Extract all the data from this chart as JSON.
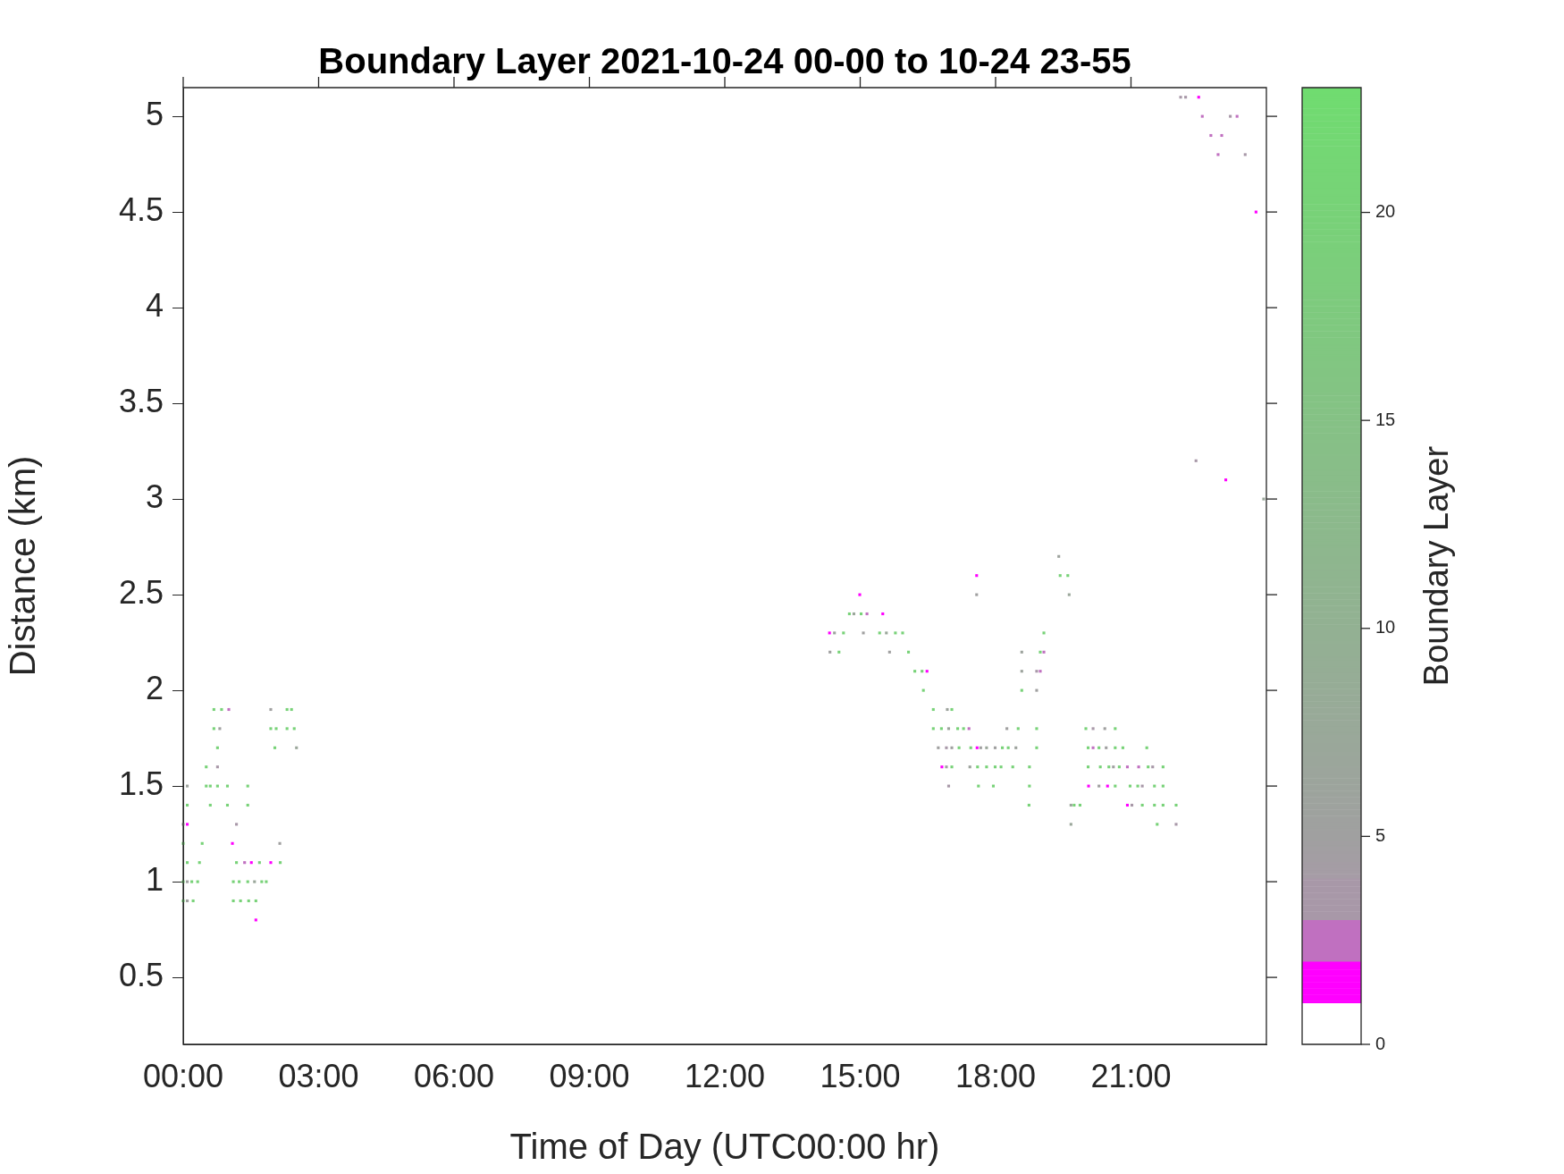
{
  "chart_data": {
    "type": "scatter",
    "title": "Boundary Layer 2021-10-24 00-00 to 10-24 23-55",
    "xlabel": "Time of Day (UTC00:00 hr)",
    "ylabel": "Distance (km)",
    "clabel": "Boundary Layer",
    "marker": "square",
    "grid": false,
    "legend": false,
    "xlim": [
      0,
      24
    ],
    "xticks": [
      {
        "value": 0,
        "label": "00:00"
      },
      {
        "value": 3,
        "label": "03:00"
      },
      {
        "value": 6,
        "label": "06:00"
      },
      {
        "value": 9,
        "label": "09:00"
      },
      {
        "value": 12,
        "label": "12:00"
      },
      {
        "value": 15,
        "label": "15:00"
      },
      {
        "value": 18,
        "label": "18:00"
      },
      {
        "value": 21,
        "label": "21:00"
      }
    ],
    "ylim": [
      0.15,
      5.15
    ],
    "yticks": [
      0.5,
      1,
      1.5,
      2,
      2.5,
      3,
      3.5,
      4,
      4.5,
      5
    ],
    "clim": [
      0,
      23
    ],
    "cticks": [
      0,
      5,
      10,
      15,
      20
    ],
    "x": [
      0.68,
      0.85,
      1.01,
      1.94,
      2.3,
      2.4,
      0.68,
      0.81,
      1.94,
      2.06,
      2.3,
      2.46,
      0.76,
      2.03,
      2.51,
      0.51,
      0.76,
      0.09,
      0.51,
      0.6,
      0.76,
      0.98,
      1.43,
      0.09,
      0.6,
      0.98,
      1.43,
      0.0,
      0.09,
      1.18,
      0.0,
      0.42,
      1.09,
      2.14,
      0.09,
      0.36,
      1.18,
      1.36,
      1.51,
      1.69,
      1.94,
      2.15,
      0.0,
      0.09,
      0.19,
      0.32,
      1.11,
      1.24,
      1.43,
      1.58,
      1.74,
      1.84,
      0.0,
      0.09,
      0.22,
      1.11,
      1.27,
      1.45,
      1.61,
      1.61,
      17.58,
      14.99,
      17.58,
      14.76,
      14.86,
      15.02,
      15.15,
      15.5,
      14.32,
      14.43,
      14.63,
      15.07,
      15.43,
      15.58,
      15.78,
      15.94,
      14.33,
      14.53,
      15.65,
      16.07,
      16.21,
      16.37,
      16.48,
      18.58,
      18.91,
      16.4,
      18.58,
      18.91,
      16.62,
      16.93,
      17.03,
      16.62,
      16.8,
      16.96,
      17.16,
      17.29,
      17.41,
      18.25,
      18.5,
      18.91,
      16.73,
      16.91,
      17.03,
      17.19,
      17.45,
      17.59,
      17.67,
      17.8,
      17.99,
      18.15,
      18.28,
      18.45,
      18.91,
      16.81,
      16.91,
      17.03,
      17.43,
      17.6,
      17.8,
      17.99,
      18.12,
      18.38,
      18.75,
      16.96,
      17.62,
      17.95,
      18.75,
      19.4,
      19.43,
      19.6,
      19.63,
      19.07,
      18.58,
      18.99,
      19.07,
      18.99,
      20.0,
      20.16,
      20.42,
      20.65,
      20.05,
      20.16,
      20.29,
      20.45,
      20.65,
      20.82,
      21.35,
      20.05,
      20.32,
      20.51,
      20.61,
      20.74,
      20.92,
      21.17,
      21.38,
      21.48,
      21.71,
      20.06,
      20.29,
      20.48,
      20.65,
      20.98,
      21.15,
      21.25,
      21.52,
      21.71,
      18.74,
      20.92,
      21.02,
      21.25,
      21.52,
      21.71,
      22.0,
      19.67,
      19.74,
      19.87,
      19.67,
      21.58,
      22.0,
      22.1,
      22.21,
      22.5,
      22.58,
      23.2,
      23.35,
      22.77,
      23.01,
      22.93,
      23.53,
      23.77,
      22.44,
      23.1,
      23.94
    ],
    "values": [
      1.9,
      1.9,
      1.9,
      1.9,
      1.9,
      1.9,
      1.8,
      1.8,
      1.8,
      1.8,
      1.8,
      1.8,
      1.7,
      1.7,
      1.7,
      1.6,
      1.6,
      1.5,
      1.5,
      1.5,
      1.5,
      1.5,
      1.5,
      1.4,
      1.4,
      1.4,
      1.4,
      1.3,
      1.3,
      1.3,
      1.2,
      1.2,
      1.2,
      1.2,
      1.1,
      1.1,
      1.1,
      1.1,
      1.1,
      1.1,
      1.1,
      1.1,
      1.0,
      1.0,
      1.0,
      1.0,
      1.0,
      1.0,
      1.0,
      1.0,
      1.0,
      1.0,
      0.9,
      0.9,
      0.9,
      0.9,
      0.9,
      0.9,
      0.9,
      0.8,
      2.6,
      2.5,
      2.5,
      2.4,
      2.4,
      2.4,
      2.4,
      2.4,
      2.3,
      2.3,
      2.3,
      2.3,
      2.3,
      2.3,
      2.3,
      2.3,
      2.2,
      2.2,
      2.2,
      2.2,
      2.1,
      2.1,
      2.1,
      2.1,
      2.1,
      2.0,
      2.0,
      2.0,
      1.9,
      1.9,
      1.9,
      1.8,
      1.8,
      1.8,
      1.8,
      1.8,
      1.8,
      1.8,
      1.8,
      1.8,
      1.7,
      1.7,
      1.7,
      1.7,
      1.7,
      1.7,
      1.7,
      1.7,
      1.7,
      1.7,
      1.7,
      1.7,
      1.7,
      1.6,
      1.6,
      1.6,
      1.6,
      1.6,
      1.6,
      1.6,
      1.6,
      1.6,
      1.6,
      1.5,
      1.5,
      1.5,
      1.5,
      2.7,
      2.6,
      2.6,
      2.5,
      2.3,
      2.2,
      2.2,
      2.2,
      2.1,
      1.8,
      1.8,
      1.8,
      1.8,
      1.7,
      1.7,
      1.7,
      1.7,
      1.7,
      1.7,
      1.7,
      1.6,
      1.6,
      1.6,
      1.6,
      1.6,
      1.6,
      1.6,
      1.6,
      1.6,
      1.6,
      1.5,
      1.5,
      1.5,
      1.5,
      1.5,
      1.5,
      1.5,
      1.5,
      1.5,
      1.4,
      1.4,
      1.4,
      1.4,
      1.4,
      1.4,
      1.4,
      1.4,
      1.4,
      1.4,
      1.3,
      1.3,
      1.3,
      5.1,
      5.1,
      5.1,
      5.0,
      5.0,
      5.0,
      4.9,
      4.9,
      4.8,
      4.8,
      4.5,
      3.2,
      3.1,
      3.0
    ],
    "cvalues": [
      20,
      20,
      2.5,
      5,
      20,
      20,
      20,
      5,
      20,
      20,
      20,
      20,
      20,
      20,
      7,
      20,
      3.5,
      6,
      20,
      20,
      20,
      20,
      20,
      20,
      20,
      20,
      20,
      5,
      1.5,
      3.5,
      20,
      20,
      1.5,
      5,
      20,
      20,
      20,
      2.5,
      1.5,
      20,
      1.5,
      20,
      20,
      5,
      20,
      20,
      20,
      20,
      20,
      7,
      20,
      20,
      20,
      5,
      20,
      20,
      20,
      20,
      20,
      1.5,
      1.5,
      1.5,
      5,
      20,
      7,
      20,
      2.5,
      1.5,
      1.5,
      6,
      20,
      5,
      20,
      7,
      20,
      20,
      5,
      20,
      5,
      20,
      20,
      20,
      1.5,
      6,
      3.5,
      20,
      20,
      5,
      20,
      6,
      20,
      20,
      20,
      6,
      20,
      20,
      2.5,
      5,
      20,
      20,
      5,
      3.5,
      5,
      20,
      20,
      1.5,
      5,
      7,
      5,
      20,
      20,
      6,
      20,
      1.5,
      5,
      20,
      6,
      20,
      20,
      20,
      20,
      20,
      20,
      3.5,
      20,
      20,
      20,
      6,
      20,
      20,
      7,
      20,
      6,
      20,
      2.5,
      2.5,
      20,
      3.5,
      5,
      20,
      20,
      2.5,
      20,
      5,
      20,
      20,
      20,
      20,
      20,
      20,
      5,
      20,
      2.5,
      2.5,
      20,
      3.5,
      20,
      1.5,
      5,
      1.5,
      20,
      20,
      20,
      3.5,
      20,
      20,
      20,
      1.5,
      3.5,
      20,
      20,
      20,
      20,
      7,
      20,
      20,
      7,
      20,
      3.5,
      3.5,
      3.5,
      1.5,
      2.5,
      3.5,
      2.5,
      2.5,
      2.5,
      2.5,
      3.5,
      1.5,
      3.5,
      1.5,
      7
    ]
  }
}
